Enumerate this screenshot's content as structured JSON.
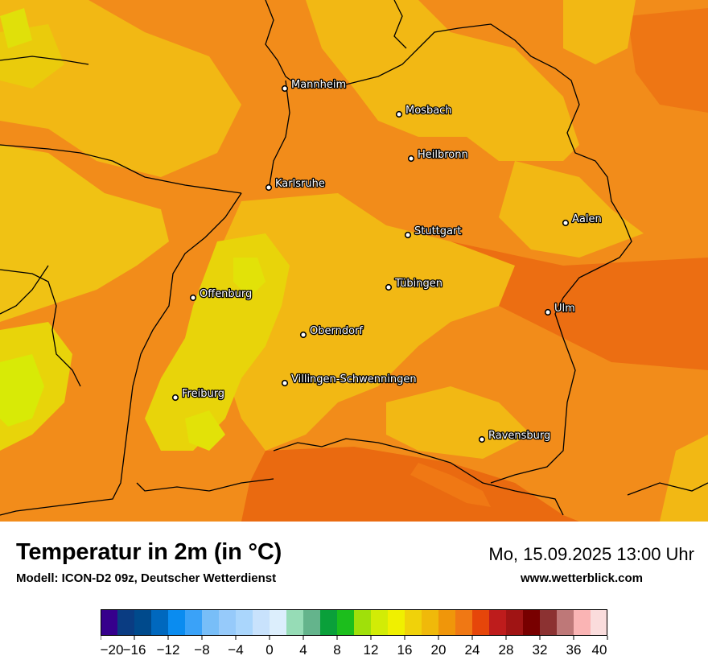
{
  "header": {
    "title": "Temperatur in 2m (in °C)",
    "model": "Modell: ICON-D2 09z, Deutscher Wetterdienst",
    "datetime": "Mo, 15.09.2025 13:00 Uhr",
    "website": "www.wetterblick.com"
  },
  "map": {
    "cities": [
      {
        "name": "Mannheim"
      },
      {
        "name": "Mosbach"
      },
      {
        "name": "Heilbronn"
      },
      {
        "name": "Karlsruhe"
      },
      {
        "name": "Aalen"
      },
      {
        "name": "Stuttgart"
      },
      {
        "name": "Tübingen"
      },
      {
        "name": "Offenburg"
      },
      {
        "name": "Ulm"
      },
      {
        "name": "Oberndorf"
      },
      {
        "name": "Villingen-Schwenningen"
      },
      {
        "name": "Freiburg"
      },
      {
        "name": "Ravensburg"
      }
    ],
    "dominant_colors": {
      "warm": "#f28c1a",
      "mild": "#f2b814",
      "cooler": "#e8d40a",
      "coolest": "#d8ea06",
      "hot": "#e85a0c",
      "borders": "#000000"
    }
  },
  "legend": {
    "unit": "°C",
    "tick_labels": [
      "−20",
      "−16",
      "−12",
      "−8",
      "−4",
      "0",
      "4",
      "8",
      "12",
      "16",
      "20",
      "24",
      "28",
      "32",
      "36",
      "40"
    ],
    "min": -20,
    "max": 40,
    "step": 2,
    "colors": [
      "#36008c",
      "#0a3c82",
      "#004a8c",
      "#0068be",
      "#0a8cf0",
      "#3aa2f8",
      "#78bef8",
      "#96cafa",
      "#aad6fc",
      "#c8e2fc",
      "#dceefc",
      "#96dcb6",
      "#64b48c",
      "#0aa03a",
      "#1cbe1c",
      "#a0e00a",
      "#d2ec06",
      "#f0f000",
      "#f0d20a",
      "#f0b90a",
      "#f0960a",
      "#f07814",
      "#e6460a",
      "#be1c1c",
      "#a01414",
      "#780000",
      "#8c3232",
      "#be7878",
      "#fab4b4",
      "#fadcdc"
    ]
  }
}
